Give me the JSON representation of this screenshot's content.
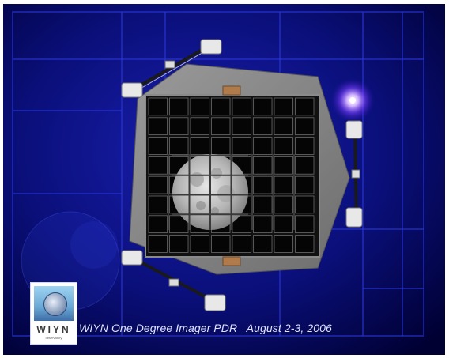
{
  "caption": "WIYN One Degree Imager PDR   August 2-3, 2006",
  "logo": {
    "name": "WIYN",
    "sub": "observatory"
  },
  "colors": {
    "background": "#000046",
    "glow": "#b98cff",
    "frame": "#7d7d7d",
    "moon": "#c8c8c8"
  },
  "icons": [
    "camera-grid",
    "moon-image",
    "strut-mount",
    "star-glow",
    "wiyn-logo"
  ]
}
